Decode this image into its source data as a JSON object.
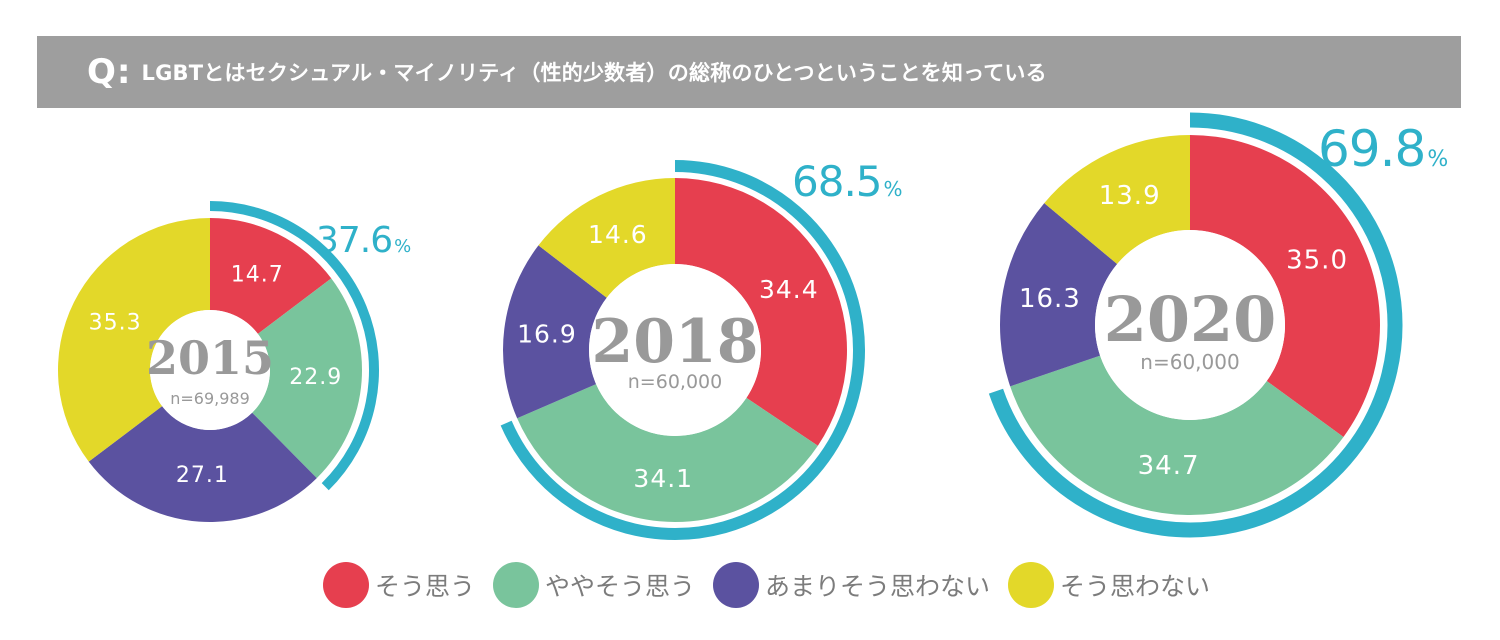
{
  "question": {
    "mark": "Q:",
    "text": "LGBTとはセクシュアル・マイノリティ（性的少数者）の総称のひとつということを知っている"
  },
  "colors": {
    "agree": "#e63f4f",
    "somewhat_agree": "#79c49c",
    "not_really": "#5b52a0",
    "disagree": "#e3d829",
    "highlight_arc": "#2fb1c9",
    "center_text": "#999999"
  },
  "legend": [
    {
      "label": "そう思う",
      "color": "#e63f4f"
    },
    {
      "label": "ややそう思う",
      "color": "#79c49c"
    },
    {
      "label": "あまりそう思わない",
      "color": "#5b52a0"
    },
    {
      "label": "そう思わない",
      "color": "#e3d829"
    }
  ],
  "chart_data": [
    {
      "type": "pie",
      "year": "2015",
      "sample": "n=69,989",
      "categories": [
        "そう思う",
        "ややそう思う",
        "あまりそう思わない",
        "そう思わない"
      ],
      "values": [
        14.7,
        22.9,
        27.1,
        35.3
      ],
      "value_labels": [
        "14.7",
        "22.9",
        "27.1",
        "35.3"
      ],
      "total_aware": "37.6",
      "total_unit": "%"
    },
    {
      "type": "pie",
      "year": "2018",
      "sample": "n=60,000",
      "categories": [
        "そう思う",
        "ややそう思う",
        "あまりそう思わない",
        "そう思わない"
      ],
      "values": [
        34.4,
        34.1,
        16.9,
        14.6
      ],
      "value_labels": [
        "34.4",
        "34.1",
        "16.9",
        "14.6"
      ],
      "total_aware": "68.5",
      "total_unit": "%"
    },
    {
      "type": "pie",
      "year": "2020",
      "sample": "n=60,000",
      "categories": [
        "そう思う",
        "ややそう思う",
        "あまりそう思わない",
        "そう思わない"
      ],
      "values": [
        35.0,
        34.7,
        16.3,
        13.9
      ],
      "value_labels": [
        "35.0",
        "34.7",
        "16.3",
        "13.9"
      ],
      "total_aware": "69.8",
      "total_unit": "%"
    }
  ]
}
